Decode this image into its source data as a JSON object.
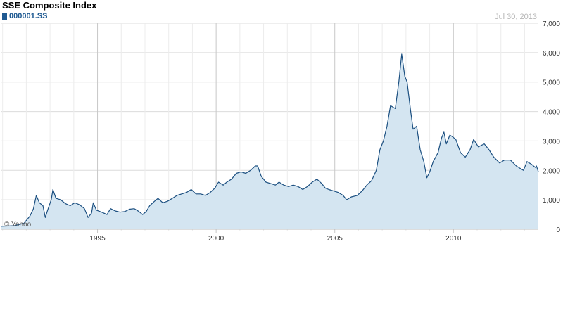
{
  "header": {
    "title": "SSE Composite Index",
    "symbol": "000001.SS",
    "date": "Jul 30, 2013"
  },
  "watermark": "© Yahoo!",
  "colors": {
    "line": "#1b4f80",
    "fill": "#d4e5f1",
    "grid": "#dcdcdc",
    "swatch": "#1f5a92"
  },
  "chart_data": {
    "type": "area",
    "title": "SSE Composite Index",
    "series": [
      {
        "name": "000001.SS"
      }
    ],
    "xlabel": "",
    "ylabel": "",
    "xlim": [
      1990.95,
      2013.58
    ],
    "ylim": [
      0,
      7000
    ],
    "x_tick_labels": [
      "1995",
      "2000",
      "2005",
      "2010"
    ],
    "y_tick_labels": [
      "7,000",
      "6,000",
      "5,000",
      "4,000",
      "3,000",
      "2,000",
      "1,000",
      "0"
    ],
    "grid": "horizontal",
    "y_axis_side": "right",
    "points": [
      [
        1990.95,
        100
      ],
      [
        1991.5,
        120
      ],
      [
        1991.9,
        200
      ],
      [
        1992.15,
        450
      ],
      [
        1992.3,
        700
      ],
      [
        1992.42,
        1150
      ],
      [
        1992.55,
        900
      ],
      [
        1992.7,
        800
      ],
      [
        1992.8,
        400
      ],
      [
        1992.9,
        650
      ],
      [
        1993.05,
        1000
      ],
      [
        1993.12,
        1350
      ],
      [
        1993.25,
        1050
      ],
      [
        1993.45,
        1000
      ],
      [
        1993.65,
        870
      ],
      [
        1993.85,
        800
      ],
      [
        1994.05,
        900
      ],
      [
        1994.25,
        830
      ],
      [
        1994.45,
        700
      ],
      [
        1994.6,
        400
      ],
      [
        1994.75,
        550
      ],
      [
        1994.82,
        900
      ],
      [
        1994.95,
        650
      ],
      [
        1995.2,
        570
      ],
      [
        1995.4,
        500
      ],
      [
        1995.55,
        700
      ],
      [
        1995.75,
        620
      ],
      [
        1995.95,
        580
      ],
      [
        1996.15,
        600
      ],
      [
        1996.35,
        680
      ],
      [
        1996.55,
        700
      ],
      [
        1996.75,
        600
      ],
      [
        1996.9,
        500
      ],
      [
        1997.05,
        600
      ],
      [
        1997.2,
        800
      ],
      [
        1997.4,
        950
      ],
      [
        1997.55,
        1050
      ],
      [
        1997.75,
        900
      ],
      [
        1997.95,
        950
      ],
      [
        1998.15,
        1050
      ],
      [
        1998.35,
        1150
      ],
      [
        1998.55,
        1200
      ],
      [
        1998.75,
        1250
      ],
      [
        1998.95,
        1350
      ],
      [
        1999.15,
        1200
      ],
      [
        1999.35,
        1200
      ],
      [
        1999.55,
        1150
      ],
      [
        1999.75,
        1250
      ],
      [
        1999.95,
        1400
      ],
      [
        2000.1,
        1600
      ],
      [
        2000.3,
        1500
      ],
      [
        2000.45,
        1600
      ],
      [
        2000.65,
        1700
      ],
      [
        2000.85,
        1900
      ],
      [
        2001.05,
        1950
      ],
      [
        2001.25,
        1900
      ],
      [
        2001.45,
        2000
      ],
      [
        2001.65,
        2150
      ],
      [
        2001.75,
        2150
      ],
      [
        2001.9,
        1800
      ],
      [
        2002.1,
        1600
      ],
      [
        2002.3,
        1550
      ],
      [
        2002.5,
        1500
      ],
      [
        2002.65,
        1600
      ],
      [
        2002.85,
        1500
      ],
      [
        2003.05,
        1450
      ],
      [
        2003.25,
        1500
      ],
      [
        2003.45,
        1450
      ],
      [
        2003.65,
        1350
      ],
      [
        2003.85,
        1450
      ],
      [
        2004.05,
        1600
      ],
      [
        2004.25,
        1700
      ],
      [
        2004.45,
        1550
      ],
      [
        2004.6,
        1400
      ],
      [
        2004.75,
        1350
      ],
      [
        2004.95,
        1300
      ],
      [
        2005.15,
        1250
      ],
      [
        2005.35,
        1150
      ],
      [
        2005.5,
        1000
      ],
      [
        2005.7,
        1100
      ],
      [
        2005.95,
        1150
      ],
      [
        2006.15,
        1300
      ],
      [
        2006.35,
        1500
      ],
      [
        2006.55,
        1650
      ],
      [
        2006.75,
        2000
      ],
      [
        2006.9,
        2700
      ],
      [
        2007.05,
        3000
      ],
      [
        2007.2,
        3500
      ],
      [
        2007.35,
        4200
      ],
      [
        2007.55,
        4100
      ],
      [
        2007.7,
        5000
      ],
      [
        2007.82,
        5950
      ],
      [
        2007.95,
        5200
      ],
      [
        2008.05,
        5000
      ],
      [
        2008.2,
        4000
      ],
      [
        2008.3,
        3400
      ],
      [
        2008.45,
        3500
      ],
      [
        2008.6,
        2700
      ],
      [
        2008.75,
        2300
      ],
      [
        2008.88,
        1750
      ],
      [
        2009.0,
        1950
      ],
      [
        2009.15,
        2300
      ],
      [
        2009.35,
        2600
      ],
      [
        2009.5,
        3100
      ],
      [
        2009.6,
        3300
      ],
      [
        2009.7,
        2900
      ],
      [
        2009.85,
        3200
      ],
      [
        2009.95,
        3150
      ],
      [
        2010.1,
        3050
      ],
      [
        2010.3,
        2600
      ],
      [
        2010.5,
        2450
      ],
      [
        2010.7,
        2700
      ],
      [
        2010.85,
        3050
      ],
      [
        2011.05,
        2800
      ],
      [
        2011.3,
        2900
      ],
      [
        2011.5,
        2700
      ],
      [
        2011.7,
        2450
      ],
      [
        2011.95,
        2250
      ],
      [
        2012.15,
        2350
      ],
      [
        2012.4,
        2350
      ],
      [
        2012.65,
        2150
      ],
      [
        2012.85,
        2050
      ],
      [
        2012.95,
        2000
      ],
      [
        2013.1,
        2300
      ],
      [
        2013.3,
        2200
      ],
      [
        2013.45,
        2100
      ],
      [
        2013.5,
        2150
      ],
      [
        2013.58,
        1950
      ]
    ]
  }
}
